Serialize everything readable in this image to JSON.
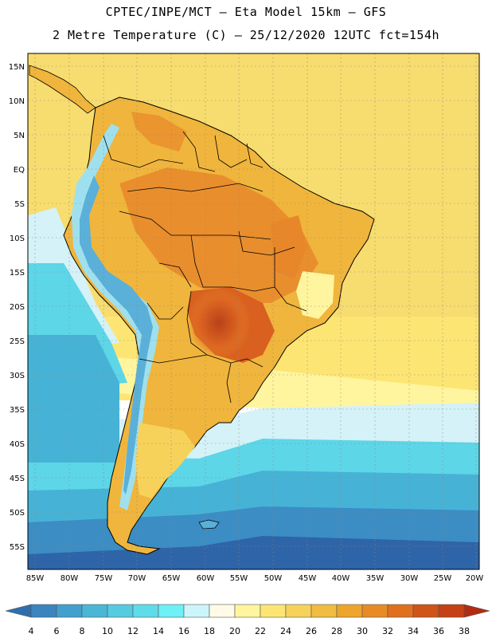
{
  "header": {
    "line1": "CPTEC/INPE/MCT –  Eta Model 15km – GFS",
    "line2": "2 Metre Temperature (C) – 25/12/2020 12UTC fct=154h"
  },
  "map": {
    "lat_labels": [
      "15N",
      "10N",
      "5N",
      "EQ",
      "5S",
      "10S",
      "15S",
      "20S",
      "25S",
      "30S",
      "35S",
      "40S",
      "45S",
      "50S",
      "55S"
    ],
    "lon_labels": [
      "85W",
      "80W",
      "75W",
      "70W",
      "65W",
      "60W",
      "55W",
      "50W",
      "45W",
      "40W",
      "35W",
      "30W",
      "25W",
      "20W"
    ],
    "colors": {
      "ocean_warm": "#f7dc6f",
      "ocean_mild": "#fff0a0",
      "ocean_cool": "#d4f2f7",
      "ocean_cold1": "#5dd6e8",
      "ocean_cold2": "#46b3d6",
      "ocean_cold3": "#3b8dc4",
      "ocean_cold4": "#2e64a8",
      "land_warm": "#f0b53c",
      "land_hot": "#e8872a",
      "land_hotter": "#d9601f",
      "land_hottest": "#b8421a",
      "andes_cold": "#5ab0d8",
      "andes_cool": "#9fe0ef"
    }
  },
  "colorbar": {
    "labels": [
      "4",
      "6",
      "8",
      "10",
      "12",
      "14",
      "16",
      "18",
      "20",
      "22",
      "24",
      "26",
      "28",
      "30",
      "32",
      "34",
      "36",
      "38"
    ],
    "colors": [
      "#2f6fad",
      "#3a85c0",
      "#41a0cd",
      "#4ab7d6",
      "#55cbe0",
      "#5fdcea",
      "#6ef0f7",
      "#ccf5fb",
      "#fffbe6",
      "#fff59e",
      "#fde573",
      "#f7d25a",
      "#f1bd40",
      "#eda62b",
      "#e88b25",
      "#e0701e",
      "#cf5418",
      "#c54016",
      "#b22b12"
    ]
  }
}
